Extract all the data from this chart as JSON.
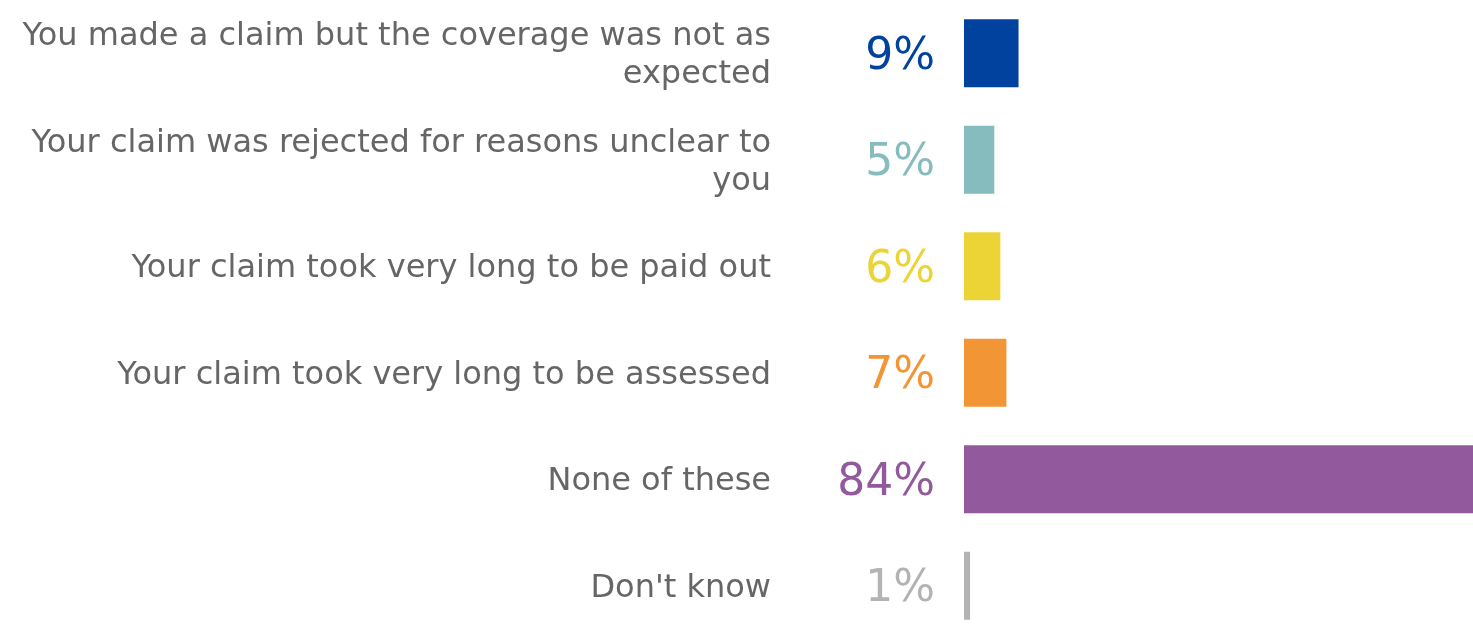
{
  "chart_data": {
    "type": "bar",
    "orientation": "horizontal",
    "categories": [
      "You made a claim but the coverage was not as expected",
      "Your claim was rejected for reasons unclear to you",
      "Your claim took very long to be paid out",
      "Your claim took very long to be assessed",
      "None of these",
      "Don't know"
    ],
    "values": [
      9,
      5,
      6,
      7,
      84,
      1
    ],
    "colors": [
      "#00429d",
      "#86bcbe",
      "#ecd436",
      "#f29535",
      "#93599d",
      "#b3b3b3"
    ],
    "value_labels": [
      "9%",
      "5%",
      "6%",
      "7%",
      "84%",
      "1%"
    ]
  }
}
